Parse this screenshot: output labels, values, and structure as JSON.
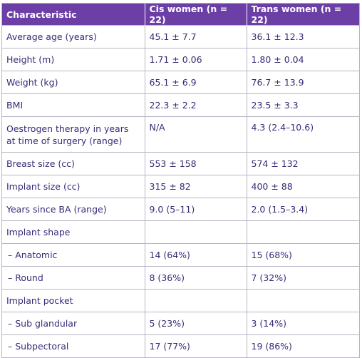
{
  "table": {
    "headers": [
      "Characteristic",
      "Cis women (n = 22)",
      "Trans women (n = 22)"
    ],
    "rows": [
      [
        "Average age (years)",
        "45.1 ± 7.7",
        "36.1 ± 12.3"
      ],
      [
        "Height (m)",
        "1.71 ± 0.06",
        "1.80 ± 0.04"
      ],
      [
        "Weight (kg)",
        "65.1 ± 6.9",
        "76.7 ± 13.9"
      ],
      [
        "BMI",
        "22.3 ± 2.2",
        "23.5 ± 3.3"
      ],
      [
        "Oestrogen therapy in years at time of surgery (range)",
        "N/A",
        "4.3 (2.4–10.6)"
      ],
      [
        "Breast size (cc)",
        "553 ± 158",
        "574 ± 132"
      ],
      [
        "Implant size (cc)",
        "315 ± 82",
        "400 ± 88"
      ],
      [
        "Years since BA (range)",
        "9.0 (5–11)",
        "2.0 (1.5–3.4)"
      ],
      [
        "Implant shape",
        "",
        ""
      ],
      [
        "– Anatomic",
        "14 (64%)",
        "15 (68%)"
      ],
      [
        "– Round",
        "8 (36%)",
        "7 (32%)"
      ],
      [
        "Implant pocket",
        "",
        ""
      ],
      [
        "– Sub glandular",
        "5 (23%)",
        "3 (14%)"
      ],
      [
        "– Subpectoral",
        "17 (77%)",
        "19 (86%)"
      ]
    ]
  },
  "colors": {
    "header_bg": "#6c3fa6",
    "header_text": "#ffffff",
    "body_text": "#3a2a78",
    "grid": "#b9b4c4"
  }
}
